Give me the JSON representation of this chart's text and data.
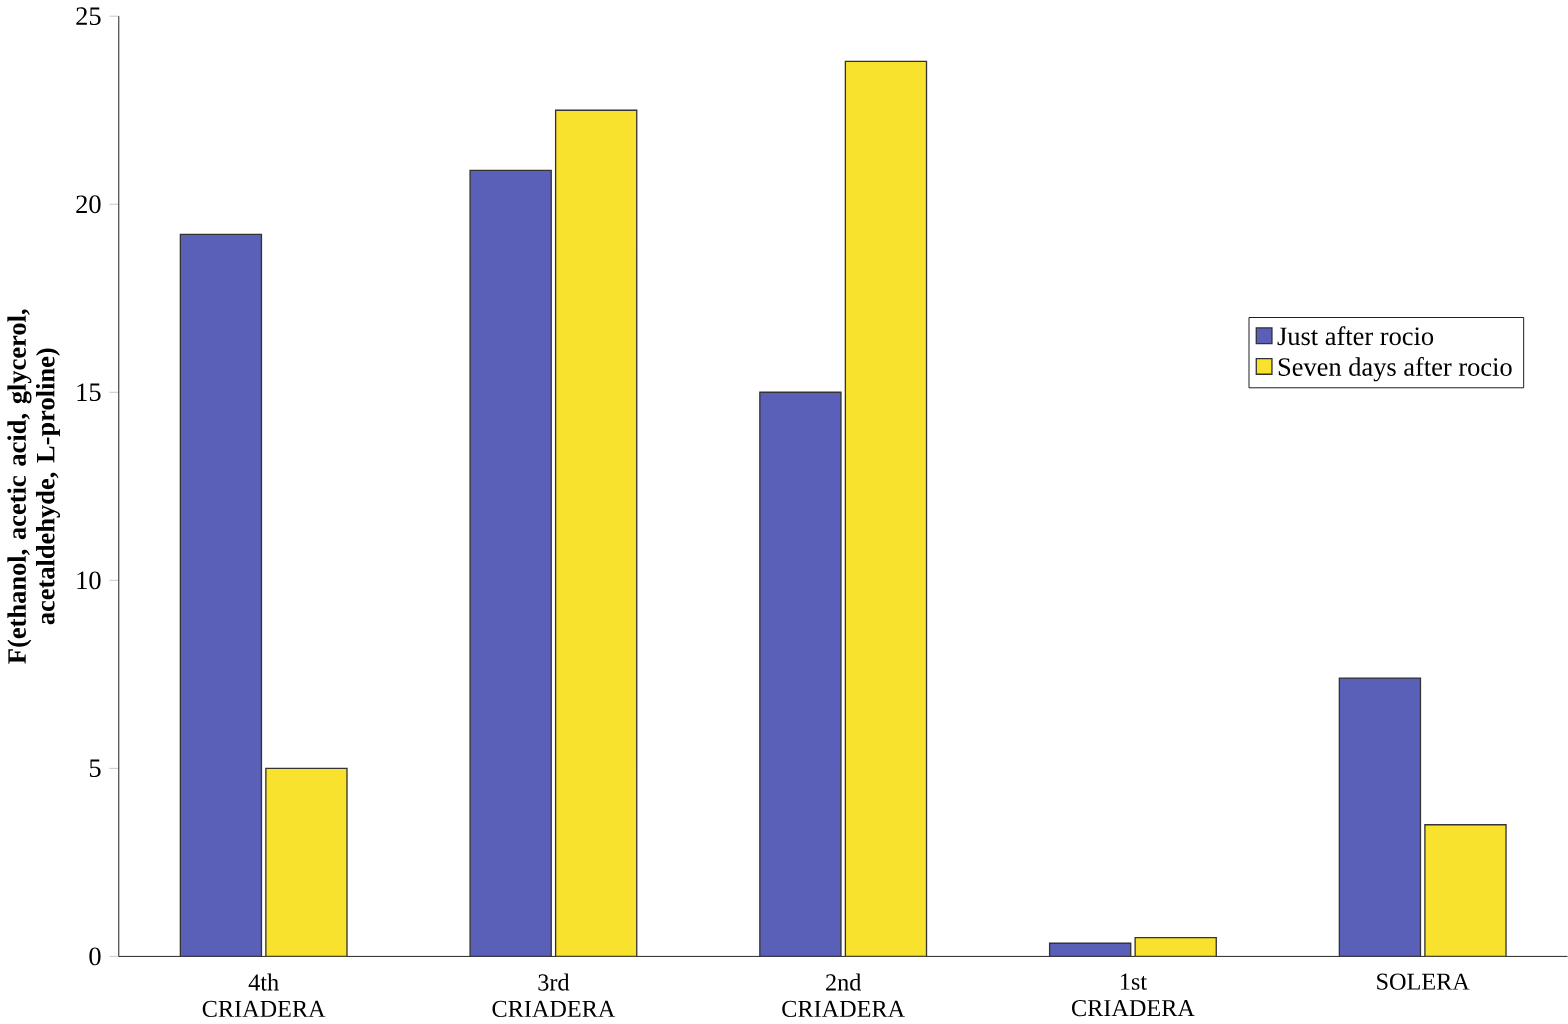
{
  "chart_data": {
    "type": "bar",
    "ylabel": "F(ethanol, acetic acid, glycerol, acetaldehyde, L-proline)",
    "categories": [
      "4th CRIADERA",
      "3rd CRIADERA",
      "2nd CRIADERA",
      "1st CRIADERA",
      "SOLERA"
    ],
    "series": [
      {
        "name": "Just after rocio",
        "color": "#5a5fb8",
        "values": [
          19.2,
          20.9,
          15.0,
          0.35,
          7.4
        ]
      },
      {
        "name": "Seven days after rocio",
        "color": "#f9e22e",
        "values": [
          5.0,
          22.5,
          23.8,
          0.5,
          3.5
        ]
      }
    ],
    "ylim": [
      0,
      25
    ],
    "yticks": [
      0,
      5,
      10,
      15,
      20,
      25
    ],
    "legend": "right",
    "grid": false
  }
}
